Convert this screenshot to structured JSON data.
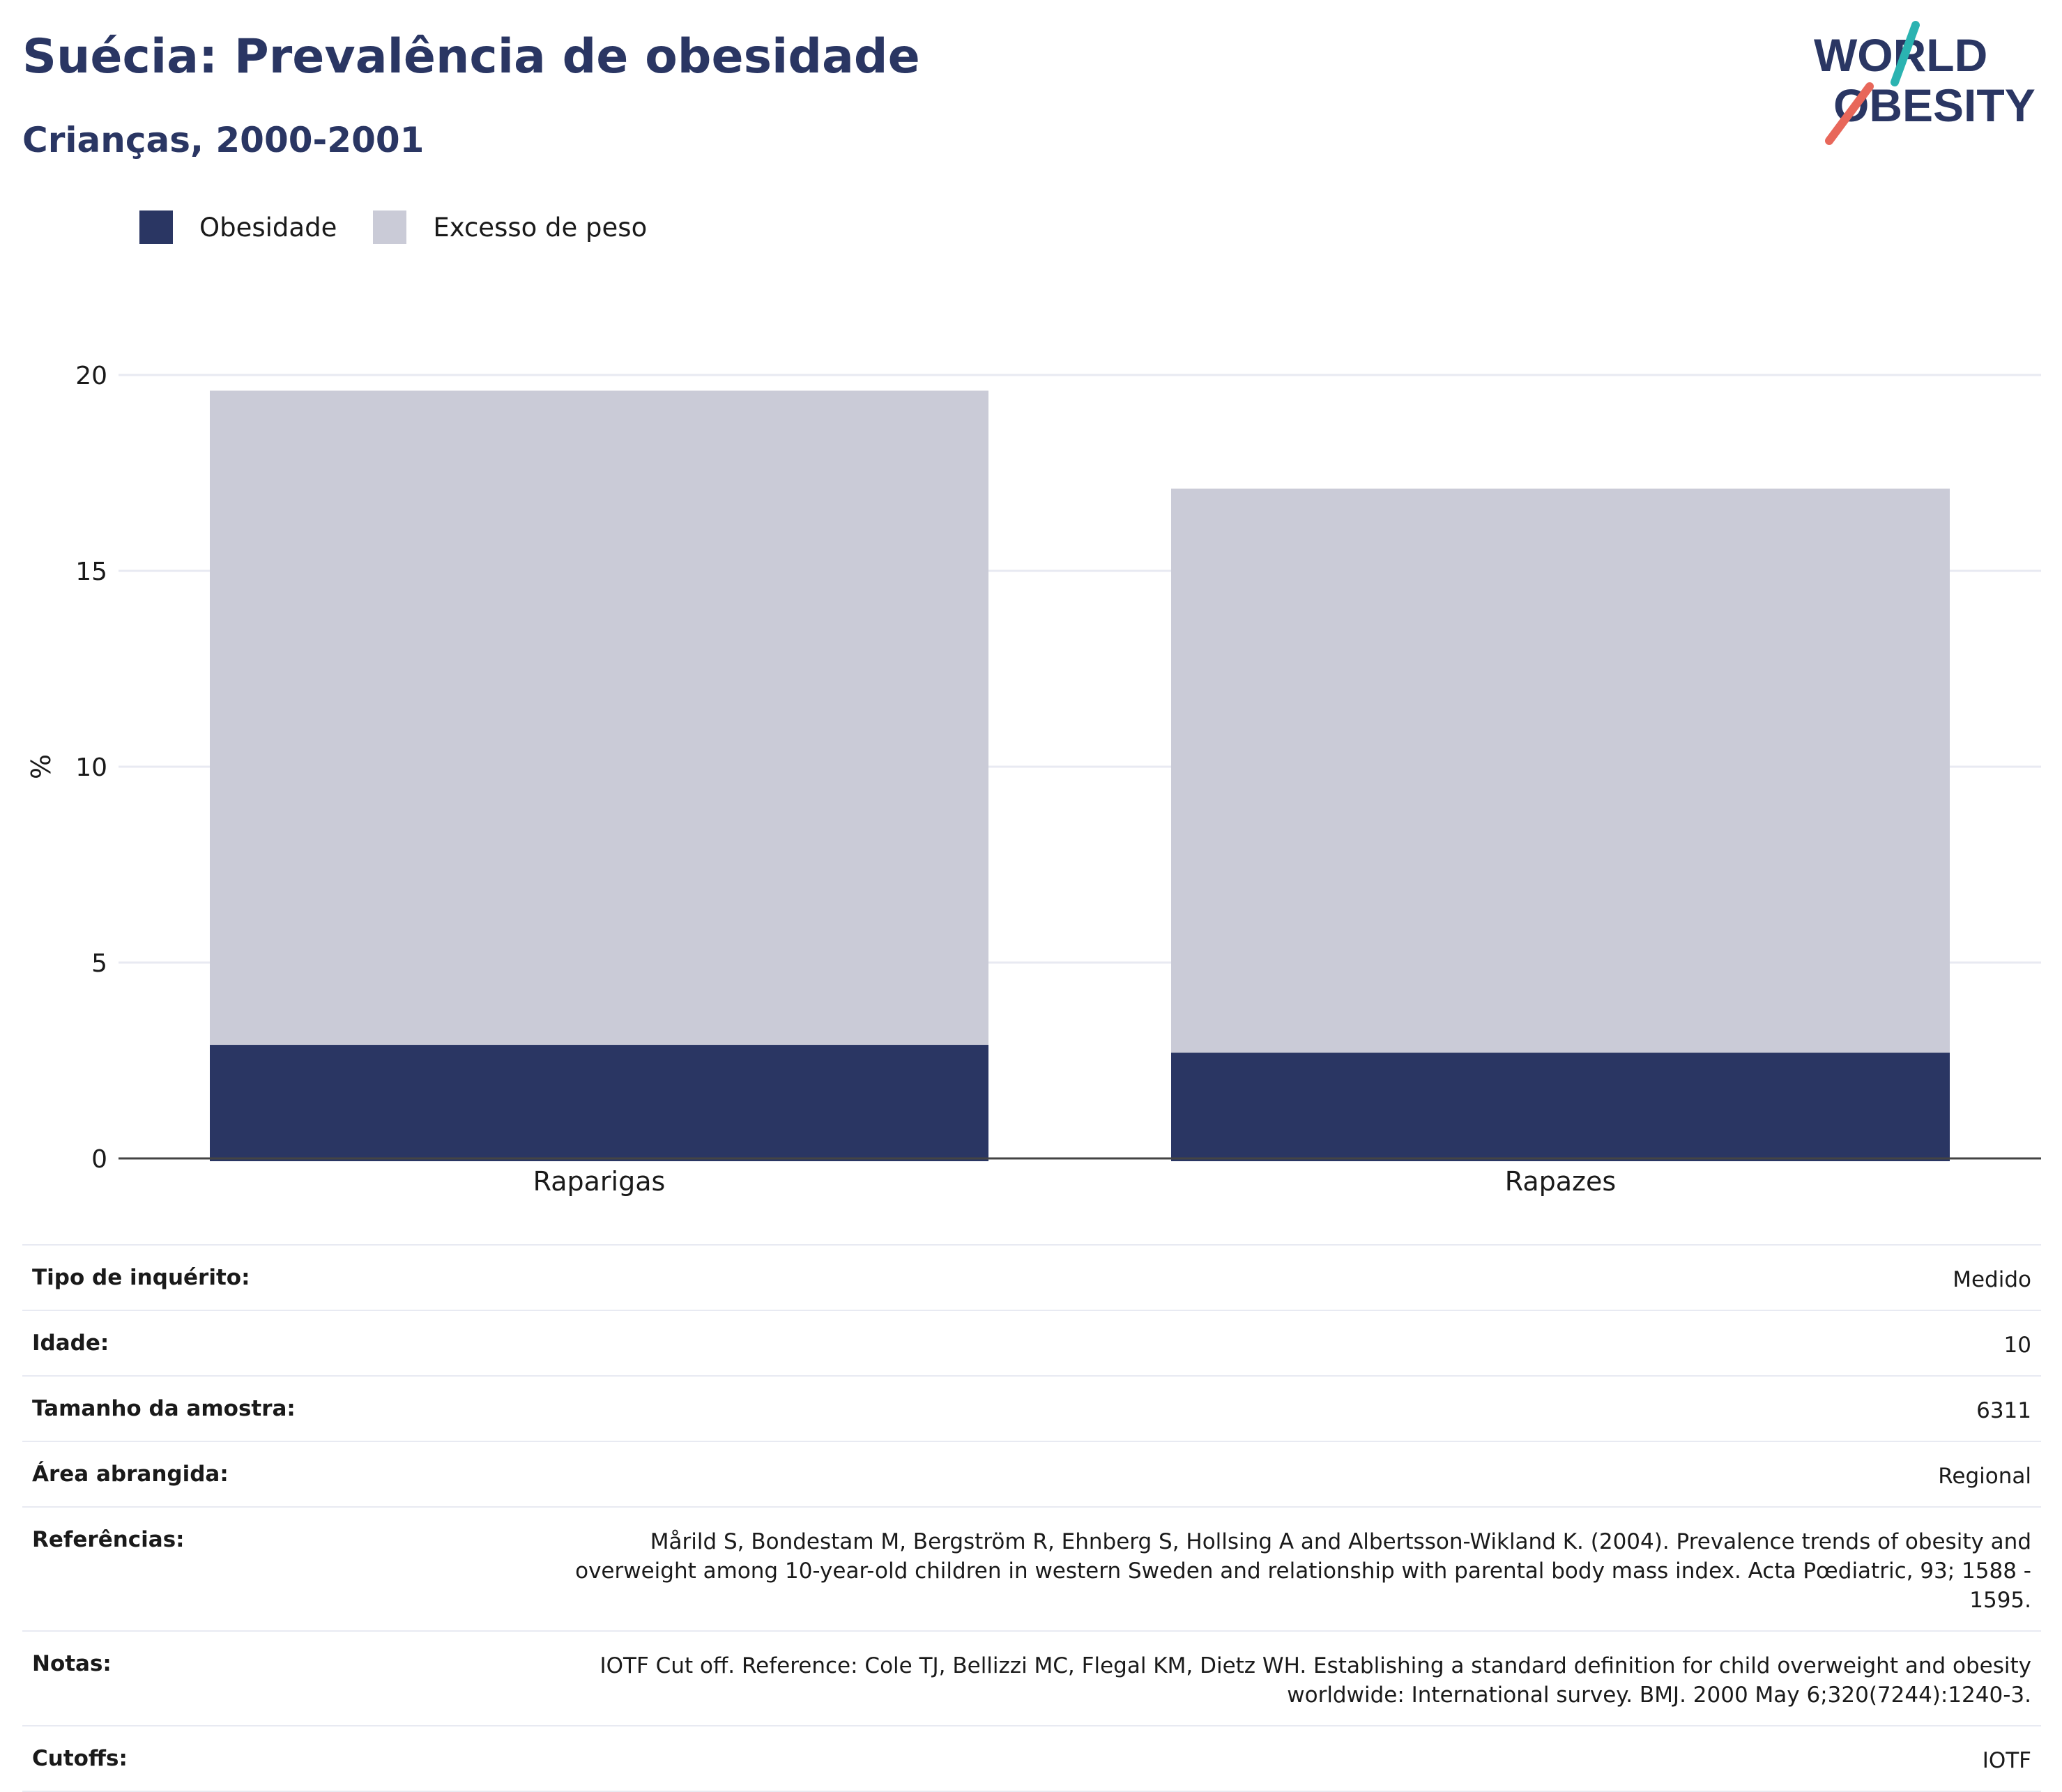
{
  "header": {
    "title": "Suécia: Prevalência de obesidade",
    "subtitle": "Crianças, 2000-2001"
  },
  "logo": {
    "line1": "WORLD",
    "line2": "OBESITY"
  },
  "colors": {
    "brand": "#2a3663",
    "obesity": "#2a3663",
    "overweight": "#cacbd7",
    "logo_teal": "#2bb3b1",
    "logo_coral": "#e8675a",
    "grid": "#e8eaf2"
  },
  "chart_data": {
    "type": "bar",
    "stacked": true,
    "categories": [
      "Raparigas",
      "Rapazes"
    ],
    "series": [
      {
        "name": "Obesidade",
        "values": [
          2.9,
          2.7
        ]
      },
      {
        "name": "Excesso de peso",
        "values": [
          16.7,
          14.4
        ]
      }
    ],
    "ylabel": "%",
    "ylim": [
      0,
      20
    ],
    "yticks": [
      0,
      5,
      10,
      15,
      20
    ],
    "grid": true,
    "legend": "top-left"
  },
  "info": [
    {
      "label": "Tipo de inquérito:",
      "value": "Medido"
    },
    {
      "label": "Idade:",
      "value": "10"
    },
    {
      "label": "Tamanho da amostra:",
      "value": "6311"
    },
    {
      "label": "Área abrangida:",
      "value": "Regional"
    },
    {
      "label": "Referências:",
      "value": "Mårild S, Bondestam M, Bergström R, Ehnberg S, Hollsing A and Albertsson-Wikland K. (2004). Prevalence trends of obesity and overweight among 10-year-old children in western Sweden and relationship with parental body mass index. Acta Pœdiatric, 93; 1588 - 1595."
    },
    {
      "label": "Notas:",
      "value": "IOTF Cut off. Reference: Cole TJ, Bellizzi MC, Flegal KM, Dietz WH. Establishing a standard definition for child overweight and obesity worldwide: International survey. BMJ. 2000 May 6;320(7244):1240-3."
    },
    {
      "label": "Cutoffs:",
      "value": "IOTF"
    }
  ]
}
